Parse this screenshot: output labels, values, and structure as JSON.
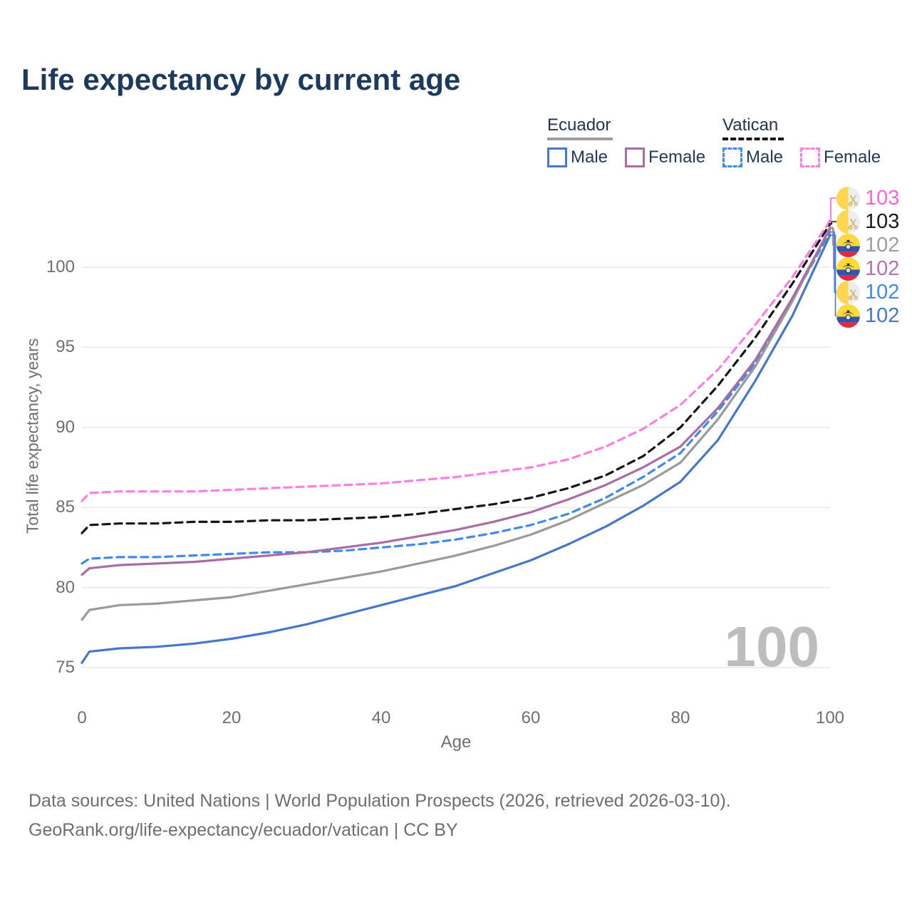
{
  "title": "Life expectancy by current age",
  "watermark": "100",
  "legend": {
    "groups": [
      {
        "name": "Ecuador",
        "line_style": "solid",
        "line_color": "#9a9a9a",
        "items": [
          {
            "label": "Male",
            "color": "#4677c8",
            "dashed": false
          },
          {
            "label": "Female",
            "color": "#a96da3",
            "dashed": false
          }
        ]
      },
      {
        "name": "Vatican",
        "line_style": "dashed",
        "line_color": "#151515",
        "items": [
          {
            "label": "Male",
            "color": "#3f8af1",
            "dashed": true
          },
          {
            "label": "Female",
            "color": "#ff7ee3",
            "dashed": true
          }
        ]
      }
    ]
  },
  "axes": {
    "x": {
      "label": "Age",
      "ticks": [
        0,
        20,
        40,
        60,
        80,
        100
      ],
      "range": [
        0,
        100
      ]
    },
    "y": {
      "label": "Total life expectancy, years",
      "ticks": [
        75,
        80,
        85,
        90,
        95,
        100
      ],
      "range": [
        75,
        100
      ]
    }
  },
  "chart_data": {
    "type": "line",
    "title": "Life expectancy by current age",
    "xlabel": "Age",
    "ylabel": "Total life expectancy, years",
    "xlim": [
      0,
      100
    ],
    "ylim": [
      75,
      100
    ],
    "grid": true,
    "legend_position": "top-right",
    "x": [
      0,
      1,
      5,
      10,
      15,
      20,
      25,
      30,
      35,
      40,
      45,
      50,
      55,
      60,
      65,
      70,
      75,
      80,
      85,
      90,
      95,
      100
    ],
    "series": [
      {
        "key": "vatican_male",
        "name": "Vatican Male",
        "country": "Vatican",
        "color": "#3f8af1",
        "dashed": true,
        "values": [
          81.5,
          81.8,
          81.9,
          81.9,
          82.0,
          82.1,
          82.2,
          82.2,
          82.3,
          82.5,
          82.7,
          83.0,
          83.4,
          83.9,
          84.6,
          85.6,
          86.9,
          88.4,
          91.0,
          94.0,
          98.0,
          102.2
        ]
      },
      {
        "key": "vatican_total",
        "name": "Vatican",
        "country": "Vatican",
        "color": "#151515",
        "dashed": true,
        "values": [
          83.4,
          83.9,
          84.0,
          84.0,
          84.1,
          84.1,
          84.2,
          84.2,
          84.3,
          84.4,
          84.6,
          84.9,
          85.2,
          85.6,
          86.2,
          87.0,
          88.2,
          90.0,
          92.6,
          95.6,
          99.0,
          102.7
        ]
      },
      {
        "key": "vatican_female",
        "name": "Vatican Female",
        "country": "Vatican",
        "color": "#ff7ee3",
        "dashed": true,
        "values": [
          85.4,
          85.9,
          86.0,
          86.0,
          86.0,
          86.1,
          86.2,
          86.3,
          86.4,
          86.5,
          86.7,
          86.9,
          87.2,
          87.5,
          88.0,
          88.8,
          89.9,
          91.4,
          93.6,
          96.4,
          99.4,
          102.9
        ]
      },
      {
        "key": "ecuador_total",
        "name": "Ecuador",
        "country": "Ecuador",
        "color": "#9a9a9a",
        "dashed": false,
        "values": [
          78.0,
          78.6,
          78.9,
          79.0,
          79.2,
          79.4,
          79.8,
          80.2,
          80.6,
          81.0,
          81.5,
          82.0,
          82.6,
          83.3,
          84.2,
          85.3,
          86.4,
          87.8,
          90.5,
          93.8,
          97.9,
          102.5
        ]
      },
      {
        "key": "ecuador_female",
        "name": "Ecuador Female",
        "country": "Ecuador",
        "color": "#a96da3",
        "dashed": false,
        "values": [
          80.8,
          81.2,
          81.4,
          81.5,
          81.6,
          81.8,
          82.0,
          82.2,
          82.5,
          82.8,
          83.2,
          83.6,
          84.1,
          84.7,
          85.5,
          86.4,
          87.5,
          88.8,
          91.2,
          94.2,
          98.1,
          102.4
        ]
      },
      {
        "key": "ecuador_male",
        "name": "Ecuador Male",
        "country": "Ecuador",
        "color": "#4677c8",
        "dashed": false,
        "values": [
          75.3,
          76.0,
          76.2,
          76.3,
          76.5,
          76.8,
          77.2,
          77.7,
          78.3,
          78.9,
          79.5,
          80.1,
          80.9,
          81.7,
          82.7,
          83.8,
          85.1,
          86.6,
          89.2,
          92.9,
          97.0,
          102.0
        ]
      }
    ]
  },
  "endpoints": [
    {
      "value": "103",
      "color": "#ff62dd",
      "flag": "vatican",
      "series": "vatican_female"
    },
    {
      "value": "103",
      "color": "#1a1a1a",
      "flag": "vatican",
      "series": "vatican_total"
    },
    {
      "value": "102",
      "color": "#9e9e9e",
      "flag": "ecuador",
      "series": "ecuador_total"
    },
    {
      "value": "102",
      "color": "#b273ae",
      "flag": "ecuador",
      "series": "ecuador_female"
    },
    {
      "value": "102",
      "color": "#3f8af1",
      "flag": "vatican",
      "series": "vatican_male"
    },
    {
      "value": "102",
      "color": "#4677c8",
      "flag": "ecuador",
      "series": "ecuador_male"
    }
  ],
  "footer": {
    "line1": "Data sources: United Nations | World Population Prospects (2026, retrieved 2026-03-10).",
    "line2": "GeoRank.org/life-expectancy/ecuador/vatican | CC BY"
  }
}
